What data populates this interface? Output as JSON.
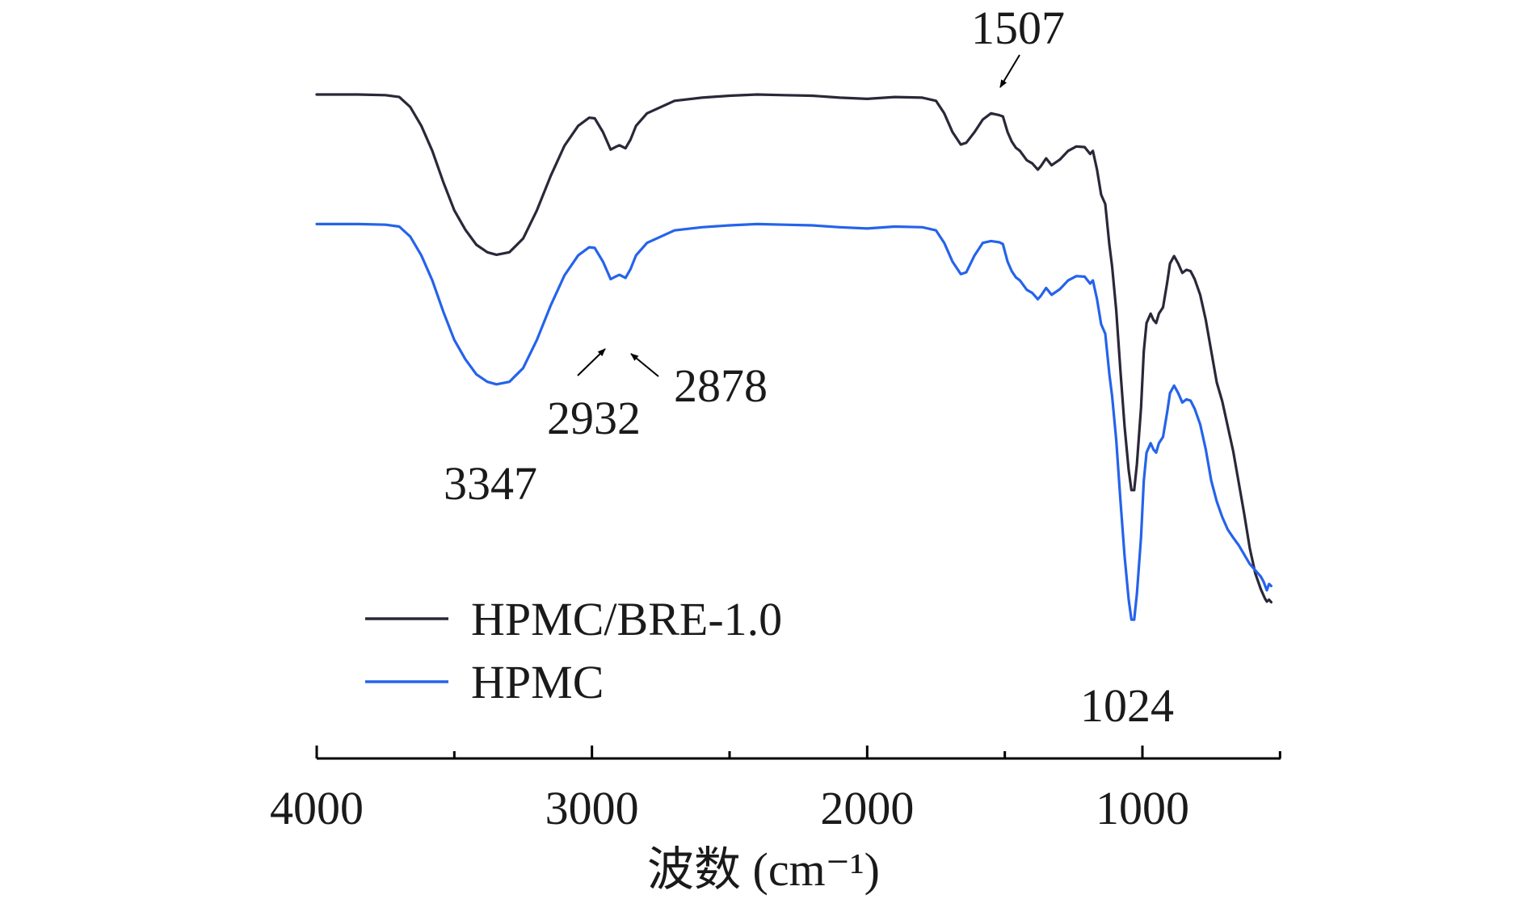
{
  "chart_data": {
    "type": "line",
    "xlabel": "波数 (cm⁻¹)",
    "ylabel": "",
    "xlim": [
      4000,
      500
    ],
    "x_reversed": true,
    "yaxis_visible": false,
    "grid": false,
    "xticks": [
      {
        "value": 4000,
        "label": "4000"
      },
      {
        "value": 3000,
        "label": "3000"
      },
      {
        "value": 2000,
        "label": "2000"
      },
      {
        "value": 1000,
        "label": "1000"
      }
    ],
    "minor_xticks": [
      3500,
      2500,
      1500,
      500
    ],
    "legend": {
      "position": "lower-left",
      "entries": [
        {
          "label": "HPMC/BRE-1.0",
          "color": "#2a2838"
        },
        {
          "label": "HPMC",
          "color": "#2563eb"
        }
      ]
    },
    "series": [
      {
        "name": "HPMC/BRE-1.0",
        "color": "#2a2838",
        "points": [
          [
            4000,
            92.0
          ],
          [
            3850,
            92.0
          ],
          [
            3750,
            91.9
          ],
          [
            3700,
            91.6
          ],
          [
            3660,
            90.0
          ],
          [
            3620,
            87.0
          ],
          [
            3580,
            83.0
          ],
          [
            3540,
            78.0
          ],
          [
            3500,
            73.5
          ],
          [
            3460,
            70.4
          ],
          [
            3420,
            68.0
          ],
          [
            3380,
            66.8
          ],
          [
            3347,
            66.4
          ],
          [
            3300,
            66.8
          ],
          [
            3250,
            69.0
          ],
          [
            3200,
            73.5
          ],
          [
            3150,
            79.0
          ],
          [
            3100,
            83.8
          ],
          [
            3050,
            87.0
          ],
          [
            3010,
            88.3
          ],
          [
            2990,
            88.2
          ],
          [
            2960,
            86.0
          ],
          [
            2940,
            84.0
          ],
          [
            2932,
            83.2
          ],
          [
            2915,
            83.6
          ],
          [
            2900,
            83.9
          ],
          [
            2878,
            83.4
          ],
          [
            2860,
            84.8
          ],
          [
            2840,
            87.0
          ],
          [
            2800,
            89.0
          ],
          [
            2700,
            91.0
          ],
          [
            2600,
            91.5
          ],
          [
            2500,
            91.8
          ],
          [
            2400,
            92.0
          ],
          [
            2300,
            91.9
          ],
          [
            2200,
            91.8
          ],
          [
            2100,
            91.5
          ],
          [
            2000,
            91.3
          ],
          [
            1900,
            91.6
          ],
          [
            1800,
            91.5
          ],
          [
            1750,
            91.0
          ],
          [
            1720,
            89.0
          ],
          [
            1690,
            86.0
          ],
          [
            1660,
            84.0
          ],
          [
            1640,
            84.3
          ],
          [
            1610,
            86.0
          ],
          [
            1580,
            88.0
          ],
          [
            1550,
            89.0
          ],
          [
            1520,
            88.7
          ],
          [
            1507,
            88.5
          ],
          [
            1490,
            86.0
          ],
          [
            1475,
            84.5
          ],
          [
            1460,
            83.5
          ],
          [
            1445,
            83.0
          ],
          [
            1420,
            81.5
          ],
          [
            1400,
            81.0
          ],
          [
            1380,
            80.0
          ],
          [
            1370,
            80.5
          ],
          [
            1350,
            81.8
          ],
          [
            1330,
            80.7
          ],
          [
            1300,
            81.6
          ],
          [
            1270,
            83.0
          ],
          [
            1240,
            83.7
          ],
          [
            1210,
            83.6
          ],
          [
            1190,
            82.5
          ],
          [
            1180,
            83.0
          ],
          [
            1165,
            80.0
          ],
          [
            1150,
            76.0
          ],
          [
            1135,
            74.5
          ],
          [
            1120,
            68.0
          ],
          [
            1110,
            64.5
          ],
          [
            1095,
            57.5
          ],
          [
            1080,
            48.0
          ],
          [
            1065,
            39.0
          ],
          [
            1050,
            32.0
          ],
          [
            1040,
            28.8
          ],
          [
            1030,
            28.8
          ],
          [
            1020,
            33.0
          ],
          [
            1005,
            42.0
          ],
          [
            995,
            51.0
          ],
          [
            985,
            55.5
          ],
          [
            970,
            57.0
          ],
          [
            960,
            56.0
          ],
          [
            950,
            55.5
          ],
          [
            940,
            57.0
          ],
          [
            925,
            58.0
          ],
          [
            910,
            62.0
          ],
          [
            900,
            65.0
          ],
          [
            885,
            66.2
          ],
          [
            870,
            65.0
          ],
          [
            855,
            63.5
          ],
          [
            840,
            64.0
          ],
          [
            825,
            63.8
          ],
          [
            810,
            62.5
          ],
          [
            790,
            60.0
          ],
          [
            770,
            56.0
          ],
          [
            750,
            51.0
          ],
          [
            730,
            46.0
          ],
          [
            710,
            43.0
          ],
          [
            690,
            39.0
          ],
          [
            670,
            35.0
          ],
          [
            650,
            30.0
          ],
          [
            630,
            25.0
          ],
          [
            610,
            19.5
          ],
          [
            590,
            15.5
          ],
          [
            570,
            13.0
          ],
          [
            555,
            11.5
          ],
          [
            548,
            11.0
          ],
          [
            540,
            11.3
          ],
          [
            532,
            10.9
          ]
        ]
      },
      {
        "name": "HPMC",
        "color": "#2563eb",
        "points": [
          [
            4000,
            71.3
          ],
          [
            3850,
            71.3
          ],
          [
            3750,
            71.2
          ],
          [
            3700,
            70.9
          ],
          [
            3660,
            69.3
          ],
          [
            3620,
            66.3
          ],
          [
            3580,
            62.3
          ],
          [
            3540,
            57.3
          ],
          [
            3500,
            52.8
          ],
          [
            3460,
            49.7
          ],
          [
            3420,
            47.3
          ],
          [
            3380,
            46.1
          ],
          [
            3347,
            45.7
          ],
          [
            3300,
            46.1
          ],
          [
            3250,
            48.3
          ],
          [
            3200,
            52.8
          ],
          [
            3150,
            58.3
          ],
          [
            3100,
            63.1
          ],
          [
            3050,
            66.3
          ],
          [
            3010,
            67.6
          ],
          [
            2990,
            67.5
          ],
          [
            2960,
            65.3
          ],
          [
            2940,
            63.3
          ],
          [
            2932,
            62.5
          ],
          [
            2915,
            62.9
          ],
          [
            2900,
            63.2
          ],
          [
            2878,
            62.7
          ],
          [
            2860,
            64.1
          ],
          [
            2840,
            66.3
          ],
          [
            2800,
            68.3
          ],
          [
            2700,
            70.3
          ],
          [
            2600,
            70.8
          ],
          [
            2500,
            71.1
          ],
          [
            2400,
            71.3
          ],
          [
            2300,
            71.2
          ],
          [
            2200,
            71.1
          ],
          [
            2100,
            70.8
          ],
          [
            2000,
            70.6
          ],
          [
            1900,
            70.9
          ],
          [
            1800,
            70.8
          ],
          [
            1750,
            70.3
          ],
          [
            1720,
            68.3
          ],
          [
            1690,
            65.3
          ],
          [
            1660,
            63.3
          ],
          [
            1640,
            63.6
          ],
          [
            1610,
            66.3
          ],
          [
            1580,
            68.3
          ],
          [
            1550,
            68.6
          ],
          [
            1520,
            68.4
          ],
          [
            1507,
            68.1
          ],
          [
            1490,
            65.3
          ],
          [
            1475,
            63.8
          ],
          [
            1460,
            62.8
          ],
          [
            1445,
            62.3
          ],
          [
            1420,
            60.8
          ],
          [
            1400,
            60.3
          ],
          [
            1380,
            59.3
          ],
          [
            1370,
            59.8
          ],
          [
            1350,
            61.1
          ],
          [
            1330,
            60.0
          ],
          [
            1300,
            60.9
          ],
          [
            1270,
            62.3
          ],
          [
            1240,
            63.0
          ],
          [
            1210,
            62.9
          ],
          [
            1190,
            61.8
          ],
          [
            1180,
            62.3
          ],
          [
            1165,
            59.3
          ],
          [
            1150,
            55.3
          ],
          [
            1135,
            53.8
          ],
          [
            1120,
            47.3
          ],
          [
            1110,
            43.8
          ],
          [
            1095,
            36.8
          ],
          [
            1080,
            27.3
          ],
          [
            1065,
            18.3
          ],
          [
            1050,
            11.3
          ],
          [
            1040,
            8.1
          ],
          [
            1030,
            8.1
          ],
          [
            1020,
            12.3
          ],
          [
            1005,
            21.3
          ],
          [
            995,
            30.3
          ],
          [
            985,
            34.8
          ],
          [
            970,
            36.3
          ],
          [
            960,
            35.3
          ],
          [
            950,
            34.8
          ],
          [
            940,
            36.3
          ],
          [
            925,
            37.3
          ],
          [
            910,
            41.3
          ],
          [
            900,
            44.3
          ],
          [
            885,
            45.5
          ],
          [
            870,
            44.3
          ],
          [
            855,
            42.8
          ],
          [
            840,
            43.3
          ],
          [
            825,
            43.1
          ],
          [
            810,
            41.8
          ],
          [
            790,
            39.3
          ],
          [
            770,
            35.3
          ],
          [
            750,
            30.3
          ],
          [
            730,
            27.0
          ],
          [
            710,
            24.5
          ],
          [
            690,
            22.5
          ],
          [
            670,
            21.2
          ],
          [
            650,
            20.0
          ],
          [
            630,
            18.5
          ],
          [
            610,
            17.0
          ],
          [
            590,
            16.0
          ],
          [
            570,
            15.0
          ],
          [
            560,
            14.2
          ],
          [
            548,
            12.8
          ],
          [
            540,
            13.8
          ],
          [
            532,
            13.5
          ]
        ]
      }
    ],
    "annotations": [
      {
        "text": "1507",
        "x": 1507,
        "series": 0,
        "arrow": true
      },
      {
        "text": "3347",
        "x": 3347,
        "series": 1,
        "arrow": false
      },
      {
        "text": "2932",
        "x": 2932,
        "series": 1,
        "arrow": true
      },
      {
        "text": "2878",
        "x": 2878,
        "series": 1,
        "arrow": true
      },
      {
        "text": "1024",
        "x": 1024,
        "series": 1,
        "arrow": false
      }
    ]
  }
}
